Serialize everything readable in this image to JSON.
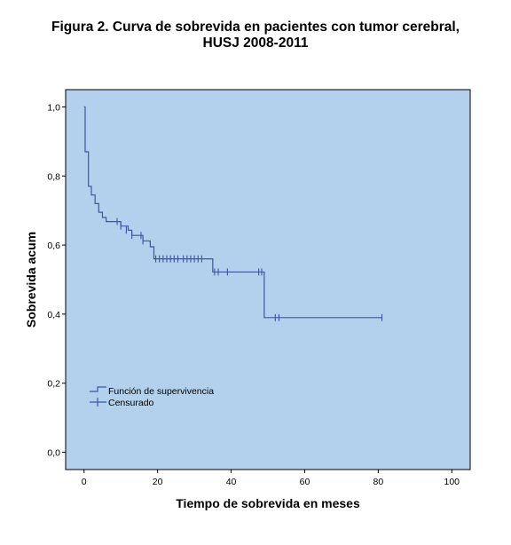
{
  "title": {
    "line1": "Figura 2. Curva de sobrevida en pacientes con tumor cerebral,",
    "line2": "HUSJ 2008-2011"
  },
  "chart_data": {
    "type": "line",
    "subtype": "kaplan-meier-step",
    "xlabel": "Tiempo de sobrevida en meses",
    "ylabel": "Sobrevida acum",
    "xlim": [
      -5,
      105
    ],
    "ylim": [
      -0.05,
      1.05
    ],
    "x_ticks": [
      0,
      20,
      40,
      60,
      80,
      100
    ],
    "y_ticks": [
      0.0,
      0.2,
      0.4,
      0.6,
      0.8,
      1.0
    ],
    "x_tick_labels": [
      "0",
      "20",
      "40",
      "60",
      "80",
      "100"
    ],
    "y_tick_labels": [
      "0,0",
      "0,2",
      "0,4",
      "0,6",
      "0,8",
      "1,0"
    ],
    "grid": false,
    "legend_position": "bottom-left",
    "plot_background": "#b3d1ed",
    "line_color": "#3c55a8",
    "series": [
      {
        "name": "Función de supervivencia",
        "steps": [
          [
            0,
            1.0
          ],
          [
            0.3,
            0.87
          ],
          [
            1.2,
            0.77
          ],
          [
            2.0,
            0.745
          ],
          [
            3.0,
            0.72
          ],
          [
            4.0,
            0.695
          ],
          [
            5.0,
            0.68
          ],
          [
            6.0,
            0.668
          ],
          [
            10.0,
            0.655
          ],
          [
            12.0,
            0.643
          ],
          [
            13.0,
            0.628
          ],
          [
            16.0,
            0.612
          ],
          [
            18.0,
            0.595
          ],
          [
            19.0,
            0.56
          ],
          [
            35.0,
            0.522
          ],
          [
            49.0,
            0.39
          ],
          [
            81.0,
            0.39
          ]
        ]
      },
      {
        "name": "Censurado",
        "points": [
          [
            9,
            0.668
          ],
          [
            10,
            0.655
          ],
          [
            11.5,
            0.643
          ],
          [
            13,
            0.628
          ],
          [
            15.5,
            0.628
          ],
          [
            16,
            0.612
          ],
          [
            19.5,
            0.56
          ],
          [
            20.5,
            0.56
          ],
          [
            21.5,
            0.56
          ],
          [
            22.5,
            0.56
          ],
          [
            23.5,
            0.56
          ],
          [
            24.5,
            0.56
          ],
          [
            25.5,
            0.56
          ],
          [
            27,
            0.56
          ],
          [
            28,
            0.56
          ],
          [
            29,
            0.56
          ],
          [
            30,
            0.56
          ],
          [
            31,
            0.56
          ],
          [
            32,
            0.56
          ],
          [
            35.5,
            0.522
          ],
          [
            36.5,
            0.522
          ],
          [
            39,
            0.522
          ],
          [
            47.5,
            0.522
          ],
          [
            48.3,
            0.522
          ],
          [
            52,
            0.39
          ],
          [
            53,
            0.39
          ],
          [
            81,
            0.39
          ]
        ]
      }
    ]
  }
}
